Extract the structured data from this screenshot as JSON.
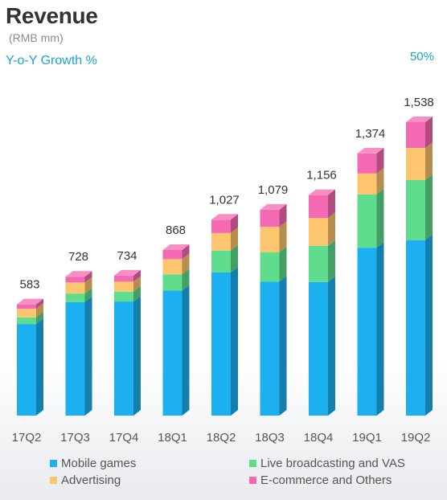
{
  "header": {
    "title": "Revenue",
    "unit": "(RMB mm)",
    "yoy_label": "Y-o-Y Growth %",
    "yoy_value": "50%"
  },
  "chart_data": {
    "type": "bar",
    "stacked": true,
    "title": "Revenue",
    "ylabel": "(RMB mm)",
    "categories": [
      "17Q2",
      "17Q3",
      "17Q4",
      "18Q1",
      "18Q2",
      "18Q3",
      "18Q4",
      "19Q1",
      "19Q2"
    ],
    "totals": [
      583,
      728,
      734,
      868,
      1027,
      1079,
      1156,
      1374,
      1538
    ],
    "total_labels": [
      "583",
      "728",
      "734",
      "868",
      "1,027",
      "1,079",
      "1,156",
      "1,374",
      "1,538"
    ],
    "series": [
      {
        "name": "Mobile games",
        "color": "#1cb0f0",
        "values": [
          480,
          595,
          598,
          655,
          750,
          702,
          700,
          880,
          920
        ]
      },
      {
        "name": "Live broadcasting and VAS",
        "color": "#5fdc8c",
        "values": [
          35,
          45,
          52,
          85,
          115,
          155,
          190,
          280,
          315
        ]
      },
      {
        "name": "Advertising",
        "color": "#fcc56e",
        "values": [
          45,
          58,
          52,
          80,
          92,
          132,
          146,
          109,
          168
        ]
      },
      {
        "name": "E-commerce and Others",
        "color": "#f46ab2",
        "values": [
          23,
          30,
          32,
          48,
          70,
          90,
          120,
          105,
          135
        ]
      }
    ],
    "ylim": [
      0,
      1600
    ],
    "grid": false,
    "legend_position": "bottom"
  }
}
